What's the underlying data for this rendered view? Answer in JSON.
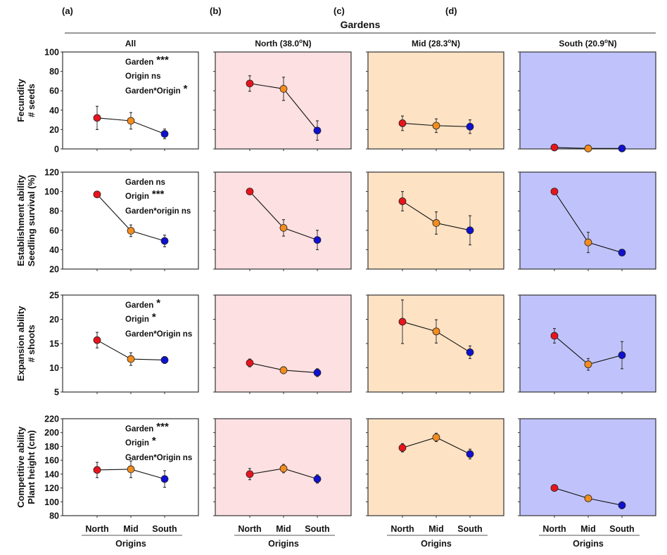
{
  "figure": {
    "super_title": "Gardens",
    "panel_letters": [
      "(a)",
      "(b)",
      "(c)",
      "(d)"
    ],
    "x_axis_title": "Origins",
    "origin_labels": [
      "North",
      "Mid",
      "South"
    ],
    "origin_colors": [
      "#e8141c",
      "#f28c1e",
      "#1010d0"
    ]
  },
  "chart_data": {
    "type": "line",
    "title": "Gardens",
    "xlabel": "Origins",
    "categories": [
      "North",
      "Mid",
      "South"
    ],
    "columns": [
      {
        "letter": "(a)",
        "title": "All",
        "background": "#ffffff"
      },
      {
        "letter": "(b)",
        "title": "North (38.0°N)",
        "title_main": "North (38.0",
        "title_suffix": "N)",
        "background": "#fde0e2"
      },
      {
        "letter": "(c)",
        "title": "Mid (28.3°N)",
        "title_main": "Mid (28.3",
        "title_suffix": "N)",
        "background": "#fde2c4"
      },
      {
        "letter": "(d)",
        "title": "South (20.9°N)",
        "title_main": "South (20.9",
        "title_suffix": "N)",
        "background": "#c0c3fb"
      }
    ],
    "rows": [
      {
        "ylabel_line1": "Fecundity",
        "ylabel_line2": "# seeds",
        "ylim": [
          0,
          100
        ],
        "yticks": [
          0,
          20,
          40,
          60,
          80,
          100
        ],
        "stats": [
          {
            "label": "Garden",
            "sig": "***"
          },
          {
            "label": "Origin ns",
            "sig": ""
          },
          {
            "label": "Garden*Origin",
            "sig": "*"
          }
        ],
        "panels": [
          {
            "means": [
              32,
              29,
              15.5
            ],
            "errors": [
              12,
              8.5,
              5
            ]
          },
          {
            "means": [
              67.5,
              62,
              19
            ],
            "errors": [
              8,
              12,
              10
            ]
          },
          {
            "means": [
              26.5,
              24,
              23
            ],
            "errors": [
              7.5,
              7,
              7
            ]
          },
          {
            "means": [
              1.5,
              0.5,
              0.5
            ],
            "errors": [
              0.5,
              0.3,
              0.3
            ]
          }
        ]
      },
      {
        "ylabel_line1": "Establishment ability",
        "ylabel_line2": "Seedling survival (%)",
        "ylim": [
          20,
          120
        ],
        "yticks": [
          20,
          40,
          60,
          80,
          100,
          120
        ],
        "stats": [
          {
            "label": "Garden ns",
            "sig": ""
          },
          {
            "label": "Origin",
            "sig": "***"
          },
          {
            "label": "Garden*origin ns",
            "sig": ""
          }
        ],
        "panels": [
          {
            "means": [
              97,
              59.5,
              49
            ],
            "errors": [
              3,
              6,
              6
            ]
          },
          {
            "means": [
              100,
              62.5,
              50
            ],
            "errors": [
              0.5,
              8.5,
              10
            ]
          },
          {
            "means": [
              90,
              67.5,
              60
            ],
            "errors": [
              10,
              11.5,
              15
            ]
          },
          {
            "means": [
              100,
              47.5,
              37
            ],
            "errors": [
              0.5,
              10.5,
              2
            ]
          }
        ]
      },
      {
        "ylabel_line1": "Expansion ability",
        "ylabel_line2": "# shoots",
        "ylim": [
          5,
          25
        ],
        "yticks": [
          5,
          10,
          15,
          20,
          25
        ],
        "stats": [
          {
            "label": "Garden",
            "sig": "*"
          },
          {
            "label": "Origin",
            "sig": "*"
          },
          {
            "label": "Garden*Origin ns",
            "sig": ""
          }
        ],
        "panels": [
          {
            "means": [
              15.7,
              11.8,
              11.6
            ],
            "errors": [
              1.6,
              1.3,
              0.7
            ]
          },
          {
            "means": [
              11,
              9.5,
              9
            ],
            "errors": [
              0.8,
              0.7,
              0.8
            ]
          },
          {
            "means": [
              19.5,
              17.5,
              13.2
            ],
            "errors": [
              4.5,
              2.4,
              1.3
            ]
          },
          {
            "means": [
              16.6,
              10.7,
              12.6
            ],
            "errors": [
              1.5,
              1.2,
              2.8
            ]
          }
        ]
      },
      {
        "ylabel_line1": "Competitive ability",
        "ylabel_line2": "Plant height (cm)",
        "ylim": [
          80,
          220
        ],
        "yticks": [
          80,
          100,
          120,
          140,
          160,
          180,
          200,
          220
        ],
        "stats": [
          {
            "label": "Garden",
            "sig": "***"
          },
          {
            "label": "Origin",
            "sig": "*"
          },
          {
            "label": "Garden*Origin ns",
            "sig": ""
          }
        ],
        "panels": [
          {
            "means": [
              146,
              147,
              133
            ],
            "errors": [
              11,
              12,
              12
            ]
          },
          {
            "means": [
              140,
              148,
              133
            ],
            "errors": [
              8,
              6,
              6
            ]
          },
          {
            "means": [
              178,
              193,
              169
            ],
            "errors": [
              6,
              6,
              7
            ]
          },
          {
            "means": [
              120,
              105,
              95
            ],
            "errors": [
              3,
              4,
              5
            ]
          }
        ]
      }
    ]
  }
}
